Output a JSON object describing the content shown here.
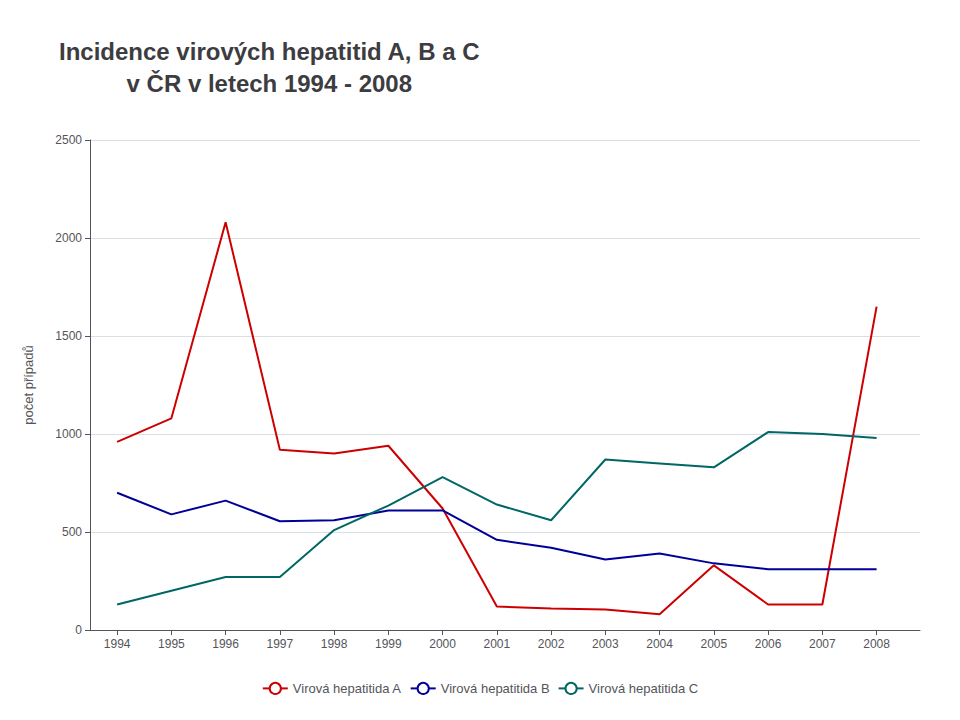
{
  "chart_data": {
    "type": "line",
    "title": "Incidence virových hepatitid A, B a C\nv ČR v letech 1994 - 2008",
    "ylabel": "počet případů",
    "x": [
      1994,
      1995,
      1996,
      1997,
      1998,
      1999,
      2000,
      2001,
      2002,
      2003,
      2004,
      2005,
      2006,
      2007,
      2008
    ],
    "series": [
      {
        "name": "Virová hepatitida A",
        "color": "#cc0000",
        "values": [
          960,
          1080,
          2080,
          920,
          900,
          940,
          620,
          120,
          110,
          105,
          80,
          330,
          130,
          130,
          1650
        ]
      },
      {
        "name": "Virová hepatitida B",
        "color": "#000099",
        "values": [
          700,
          590,
          660,
          555,
          560,
          610,
          610,
          460,
          420,
          360,
          390,
          340,
          310,
          310,
          310
        ]
      },
      {
        "name": "Virová hepatitida C",
        "color": "#006666",
        "values": [
          130,
          200,
          270,
          270,
          510,
          635,
          780,
          640,
          560,
          870,
          850,
          830,
          1010,
          1000,
          980
        ]
      }
    ],
    "xlim": [
      1993.5,
      2008.8
    ],
    "xticks": [
      1994,
      1995,
      1996,
      1997,
      1998,
      1999,
      2000,
      2001,
      2002,
      2003,
      2004,
      2005,
      2006,
      2007,
      2008
    ],
    "ylim": [
      0,
      2500
    ],
    "yticks": [
      0,
      500,
      1000,
      1500,
      2000,
      2500
    ],
    "grid": true,
    "legend": "bottom"
  }
}
